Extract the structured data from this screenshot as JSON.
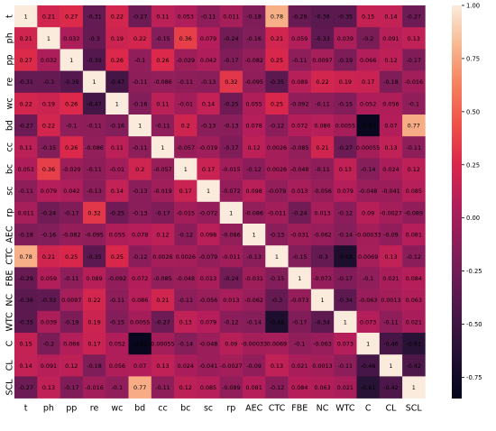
{
  "chart_data": {
    "type": "heatmap",
    "title": "",
    "xlabel": "",
    "ylabel": "",
    "labels": [
      "t",
      "ph",
      "pp",
      "re",
      "wc",
      "bd",
      "cc",
      "bc",
      "sc",
      "rp",
      "AEC",
      "CTC",
      "FBE",
      "NC",
      "WTC",
      "C",
      "CL",
      "SCL"
    ],
    "value_range": [
      -0.85,
      1.0
    ],
    "colorbar_ticks": [
      1.0,
      0.75,
      0.5,
      0.25,
      0.0,
      -0.25,
      -0.5,
      -0.75
    ],
    "colormap": "rocket",
    "matrix": [
      [
        1,
        0.21,
        0.27,
        -0.31,
        0.22,
        -0.27,
        0.11,
        0.053,
        -0.11,
        0.011,
        -0.18,
        0.78,
        -0.29,
        -0.36,
        -0.35,
        0.15,
        0.14,
        -0.27
      ],
      [
        0.21,
        1,
        0.032,
        -0.3,
        0.19,
        0.22,
        -0.15,
        0.36,
        0.079,
        -0.24,
        -0.16,
        0.21,
        0.059,
        -0.33,
        0.039,
        -0.2,
        0.091,
        0.13
      ],
      [
        0.27,
        0.032,
        1,
        -0.39,
        0.26,
        -0.1,
        0.26,
        -0.029,
        0.042,
        -0.17,
        -0.082,
        0.25,
        -0.11,
        0.0097,
        -0.19,
        0.066,
        0.12,
        -0.17
      ],
      [
        -0.31,
        -0.3,
        -0.39,
        1,
        -0.47,
        -0.11,
        -0.086,
        -0.11,
        -0.13,
        0.32,
        -0.095,
        -0.35,
        0.089,
        0.22,
        0.19,
        0.17,
        -0.18,
        -0.016
      ],
      [
        0.22,
        0.19,
        0.26,
        -0.47,
        1,
        -0.16,
        0.11,
        -0.01,
        0.14,
        -0.25,
        0.055,
        0.25,
        -0.092,
        -0.11,
        -0.15,
        0.052,
        0.056,
        -0.1
      ],
      [
        -0.27,
        0.22,
        -0.1,
        -0.11,
        -0.16,
        1,
        -0.11,
        0.2,
        -0.13,
        -0.13,
        0.078,
        -0.12,
        0.072,
        0.086,
        0.0055,
        -0.82,
        0.07,
        0.77
      ],
      [
        0.11,
        -0.15,
        0.26,
        -0.086,
        0.11,
        -0.11,
        1,
        -0.057,
        -0.019,
        -0.17,
        0.12,
        0.0026,
        -0.085,
        0.21,
        -0.27,
        0.00055,
        0.13,
        -0.11
      ],
      [
        0.053,
        0.36,
        -0.029,
        -0.11,
        -0.01,
        0.2,
        -0.057,
        1,
        0.17,
        -0.015,
        -0.12,
        0.0026,
        -0.048,
        -0.11,
        0.13,
        -0.14,
        0.024,
        0.12
      ],
      [
        -0.11,
        0.079,
        0.042,
        -0.13,
        0.14,
        -0.13,
        -0.019,
        0.17,
        1,
        -0.072,
        0.098,
        -0.079,
        0.013,
        -0.056,
        0.079,
        -0.048,
        -0.041,
        0.085
      ],
      [
        0.011,
        -0.24,
        -0.17,
        0.32,
        -0.25,
        -0.13,
        -0.17,
        -0.015,
        -0.072,
        1,
        -0.086,
        -0.011,
        -0.24,
        0.013,
        -0.12,
        0.09,
        -0.0027,
        -0.089
      ],
      [
        -0.18,
        -0.16,
        -0.082,
        -0.095,
        0.055,
        0.078,
        0.12,
        -0.12,
        0.098,
        -0.086,
        1,
        -0.13,
        -0.031,
        -0.062,
        -0.14,
        -0.00033,
        -0.09,
        0.081
      ],
      [
        0.78,
        0.21,
        0.25,
        -0.35,
        0.25,
        -0.12,
        0.0026,
        0.0026,
        -0.079,
        -0.011,
        -0.13,
        1,
        -0.15,
        -0.3,
        -0.68,
        0.0069,
        0.13,
        -0.12
      ],
      [
        -0.29,
        0.059,
        -0.11,
        0.089,
        -0.092,
        0.072,
        -0.085,
        -0.048,
        0.013,
        -0.24,
        -0.031,
        -0.15,
        1,
        -0.073,
        -0.17,
        -0.1,
        0.021,
        0.084
      ],
      [
        -0.36,
        -0.33,
        0.0097,
        0.22,
        -0.11,
        0.086,
        0.21,
        -0.11,
        -0.056,
        0.013,
        -0.062,
        -0.3,
        -0.073,
        1,
        -0.34,
        -0.063,
        0.0013,
        0.063
      ],
      [
        -0.35,
        0.039,
        -0.19,
        0.19,
        -0.15,
        0.0055,
        -0.27,
        0.13,
        0.079,
        -0.12,
        -0.14,
        -0.68,
        -0.17,
        -0.34,
        1,
        0.073,
        -0.11,
        0.021
      ],
      [
        0.15,
        -0.2,
        0.066,
        0.17,
        0.052,
        -0.82,
        0.00055,
        -0.14,
        -0.048,
        0.09,
        -0.00033,
        0.0069,
        -0.1,
        -0.063,
        0.073,
        1,
        -0.46,
        -0.61
      ],
      [
        0.14,
        0.091,
        0.12,
        -0.18,
        0.056,
        0.07,
        0.13,
        0.024,
        -0.041,
        -0.0027,
        -0.09,
        0.13,
        0.021,
        0.0013,
        -0.11,
        -0.46,
        1,
        -0.42
      ],
      [
        -0.27,
        0.13,
        -0.17,
        -0.016,
        -0.1,
        0.77,
        -0.11,
        0.12,
        0.085,
        -0.089,
        0.081,
        -0.12,
        0.084,
        0.063,
        0.021,
        -0.61,
        -0.42,
        1
      ]
    ]
  }
}
